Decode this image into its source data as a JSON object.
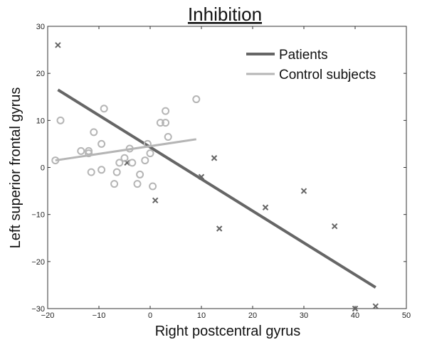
{
  "chart_data": {
    "type": "scatter",
    "title": "Inhibition",
    "xlabel": "Right postcentral gyrus",
    "ylabel": "Left superior frontal gyrus",
    "xlim": [
      -20,
      50
    ],
    "ylim": [
      -30,
      30
    ],
    "xticks": [
      -20,
      -10,
      0,
      10,
      20,
      30,
      40,
      50
    ],
    "yticks": [
      -30,
      -20,
      -10,
      0,
      10,
      20,
      30
    ],
    "grid": false,
    "legend_position": "top-right",
    "series": [
      {
        "name": "Patients",
        "marker": "x",
        "color": "#666666",
        "points": [
          [
            -18,
            26
          ],
          [
            -4.5,
            1
          ],
          [
            1,
            -7
          ],
          [
            10,
            -2
          ],
          [
            12.5,
            2
          ],
          [
            13.5,
            -13
          ],
          [
            22.5,
            -8.5
          ],
          [
            30,
            -5
          ],
          [
            36,
            -12.5
          ],
          [
            40,
            -30
          ],
          [
            44,
            -29.5
          ]
        ],
        "fit": [
          [
            -18,
            16.5
          ],
          [
            44,
            -25.5
          ]
        ]
      },
      {
        "name": "Control subjects",
        "marker": "o",
        "color": "#b5b5b5",
        "points": [
          [
            -18.5,
            1.5
          ],
          [
            -17.5,
            10
          ],
          [
            -13.5,
            3.5
          ],
          [
            -12,
            3.5
          ],
          [
            -12,
            3
          ],
          [
            -11.5,
            -1
          ],
          [
            -11,
            7.5
          ],
          [
            -9.5,
            5
          ],
          [
            -9.5,
            -0.5
          ],
          [
            -9,
            12.5
          ],
          [
            -7,
            -3.5
          ],
          [
            -6.5,
            -1
          ],
          [
            -6,
            1
          ],
          [
            -5,
            2
          ],
          [
            -4,
            4
          ],
          [
            -3.5,
            1
          ],
          [
            -2.5,
            -3.5
          ],
          [
            -2,
            -1.5
          ],
          [
            -1,
            1.5
          ],
          [
            -0.5,
            5
          ],
          [
            0,
            3
          ],
          [
            0.5,
            -4
          ],
          [
            2,
            9.5
          ],
          [
            3,
            12
          ],
          [
            3,
            9.5
          ],
          [
            3.5,
            6.5
          ],
          [
            9,
            14.5
          ]
        ],
        "fit": [
          [
            -18.5,
            1.5
          ],
          [
            9,
            6
          ]
        ]
      }
    ]
  }
}
